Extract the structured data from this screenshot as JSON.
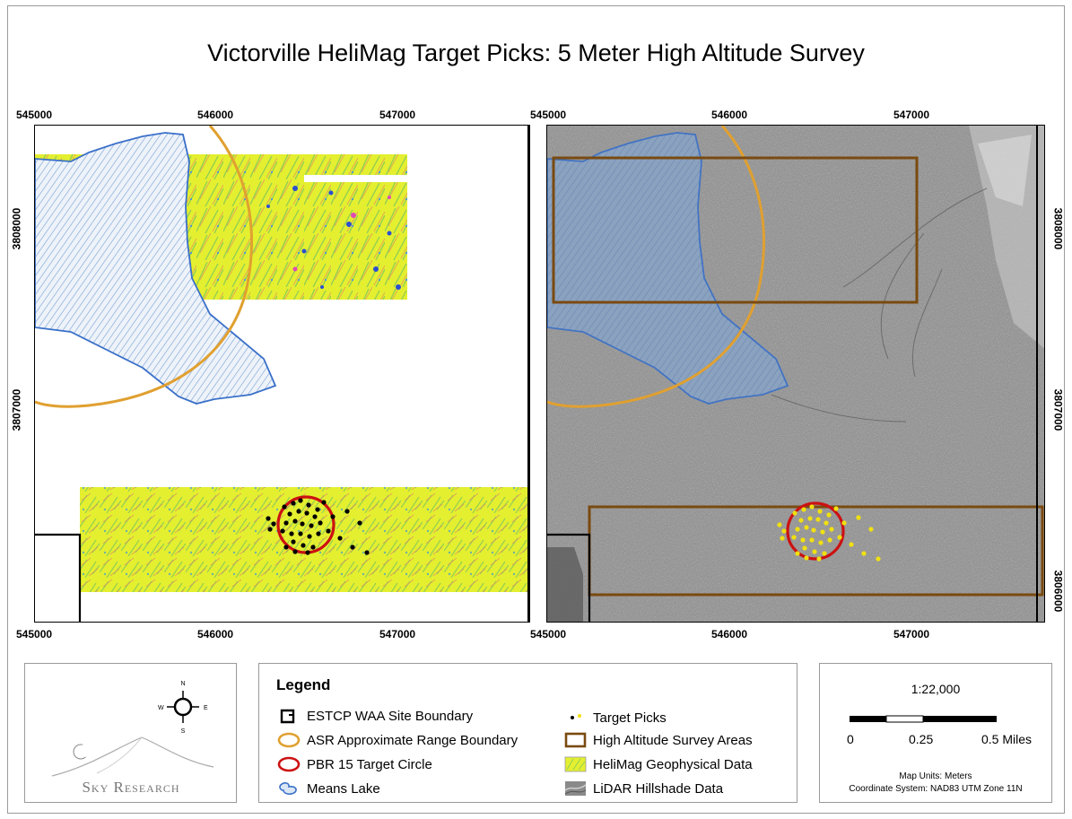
{
  "title": "Victorville HeliMag Target Picks: 5 Meter High Altitude Survey",
  "left_map": {
    "x_ticks": [
      "545000",
      "546000",
      "547000"
    ],
    "y_ticks": [
      "3808000",
      "3807000"
    ]
  },
  "right_map": {
    "x_ticks": [
      "545000",
      "546000",
      "547000"
    ],
    "y_ticks": [
      "3808000",
      "3807000",
      "3806000"
    ]
  },
  "legend": {
    "title": "Legend",
    "items": [
      {
        "label": "ESTCP WAA Site Boundary",
        "icon": "site-boundary-icon"
      },
      {
        "label": "ASR Approximate Range Boundary",
        "icon": "range-boundary-icon",
        "color": "#e0a030"
      },
      {
        "label": "PBR 15 Target Circle",
        "icon": "target-circle-icon",
        "color": "#cc1111"
      },
      {
        "label": "Means Lake",
        "icon": "lake-icon",
        "color": "#3a70c8"
      },
      {
        "label": "Target Picks",
        "icon": "target-picks-icon"
      },
      {
        "label": "High Altitude Survey Areas",
        "icon": "survey-area-icon",
        "color": "#7a4a10"
      },
      {
        "label": "HeliMag Geophysical Data",
        "icon": "helimag-icon",
        "color": "#e4ef30"
      },
      {
        "label": "LiDAR Hillshade Data",
        "icon": "lidar-icon",
        "color": "#8a8a8a"
      }
    ]
  },
  "compass": {
    "n": "N",
    "s": "S",
    "e": "E",
    "w": "W"
  },
  "logo": {
    "text": "Sky Research"
  },
  "scale": {
    "ratio": "1:22,000",
    "labels": [
      "0",
      "0.25",
      "0.5 Miles"
    ],
    "map_units": "Map Units: Meters",
    "coordinate_system": "Coordinate System: NAD83 UTM Zone 11N"
  },
  "colors": {
    "target_pick_left": "#000000",
    "target_pick_right": "#f0e010",
    "range_boundary": "#e0a030",
    "target_circle": "#cc1111",
    "lake": "#3a70c8",
    "survey_area": "#7a4a10"
  }
}
